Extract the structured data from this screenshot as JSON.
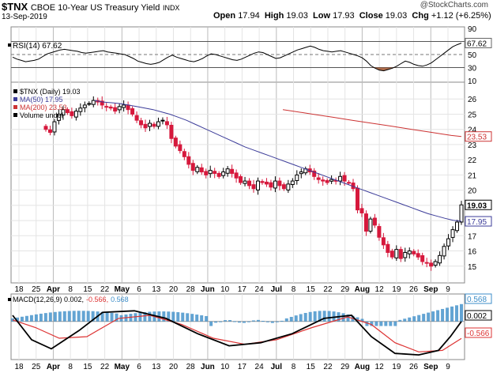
{
  "header": {
    "symbol": "$TNX",
    "name": "CBOE 10-Year US Treasury Yield",
    "exchange": "INDX",
    "date": "13-Sep-2019",
    "watermark": "@StockCharts.com",
    "open_label": "Open",
    "open": "17.94",
    "high_label": "High",
    "high": "19.03",
    "low_label": "Low",
    "low": "17.93",
    "close_label": "Close",
    "close": "19.03",
    "chg_label": "Chg",
    "chg": "+1.12 (+6.25%)"
  },
  "chart_data": [
    {
      "type": "line",
      "panel": "rsi",
      "legend": "RSI(14) 67.62",
      "ylim": [
        10,
        90
      ],
      "y_ticks": [
        10,
        30,
        50,
        70,
        90
      ],
      "reference_lines": [
        30,
        50,
        70
      ],
      "last_value_tag": "67.62",
      "last_value": 67.62,
      "color": "#000000",
      "fill_below_30": "#a0522d",
      "values": [
        46,
        43,
        41,
        39,
        40,
        41,
        43,
        47,
        51,
        53,
        55,
        57,
        58,
        57,
        56,
        55,
        53,
        52,
        53,
        54,
        55,
        56,
        54,
        53,
        52,
        51,
        50,
        47,
        44,
        40,
        38,
        36,
        35,
        36,
        38,
        42,
        46,
        49,
        46,
        44,
        42,
        40,
        39,
        41,
        44,
        48,
        51,
        50,
        48,
        46,
        44,
        42,
        41,
        43,
        46,
        49,
        52,
        54,
        53,
        50,
        47,
        44,
        45,
        48,
        51,
        54,
        57,
        59,
        61,
        63,
        61,
        58,
        56,
        55,
        54,
        55,
        56,
        54,
        52,
        50,
        48,
        45,
        40,
        33,
        29,
        26,
        25,
        27,
        29,
        32,
        36,
        40,
        38,
        35,
        33,
        32,
        34,
        37,
        42,
        47,
        52,
        57,
        62,
        65,
        67.62
      ]
    },
    {
      "type": "candlestick",
      "panel": "price",
      "legend": [
        "$TNX (Daily) 19.03",
        "MA(50) 17.95",
        "MA(200) 23.53",
        "Volume undef"
      ],
      "ylim": [
        14,
        27
      ],
      "y_ticks": [
        15,
        16,
        17,
        18,
        19,
        20,
        21,
        22,
        23,
        24,
        25,
        26
      ],
      "last_value_tags": [
        "19.03",
        "17.95",
        "23.53"
      ],
      "up_color": "#000000",
      "down_color": "#d6183c",
      "ma50_color": "#3c3c99",
      "ma200_color": "#cc3333",
      "closes": [
        24.0,
        23.8,
        24.5,
        25.0,
        25.3,
        25.1,
        24.9,
        25.2,
        25.4,
        25.6,
        25.7,
        25.9,
        25.8,
        25.6,
        25.5,
        25.4,
        25.2,
        25.5,
        25.6,
        25.3,
        25.0,
        24.6,
        24.3,
        24.1,
        24.4,
        24.2,
        24.5,
        24.6,
        24.3,
        23.4,
        22.9,
        22.6,
        22.2,
        21.7,
        21.3,
        21.5,
        21.2,
        21.0,
        21.3,
        21.1,
        20.9,
        21.2,
        21.4,
        21.1,
        20.8,
        20.5,
        20.6,
        20.3,
        20.1,
        20.6,
        20.5,
        20.4,
        20.2,
        20.6,
        20.3,
        20.1,
        20.4,
        20.6,
        21.0,
        21.2,
        21.4,
        21.2,
        20.9,
        20.7,
        20.6,
        20.5,
        20.7,
        20.6,
        20.9,
        20.6,
        20.5,
        20.1,
        18.7,
        18.5,
        17.3,
        18.1,
        17.7,
        16.9,
        16.4,
        15.9,
        15.6,
        16.1,
        15.5,
        15.9,
        16.0,
        15.8,
        15.6,
        15.3,
        15.2,
        15.0,
        15.3,
        15.7,
        16.3,
        16.8,
        17.4,
        17.9,
        19.03
      ],
      "ma50": [
        25.9,
        25.8,
        25.75,
        25.7,
        25.6,
        25.5,
        25.4,
        25.3,
        25.15,
        25.0,
        24.8,
        24.6,
        24.35,
        24.1,
        23.85,
        23.6,
        23.35,
        23.1,
        22.85,
        22.65,
        22.45,
        22.25,
        22.05,
        21.85,
        21.65,
        21.45,
        21.25,
        21.05,
        20.85,
        20.65,
        20.45,
        20.25,
        20.05,
        19.85,
        19.65,
        19.45,
        19.25,
        19.05,
        18.85,
        18.65,
        18.45,
        18.3,
        18.15,
        18.02,
        17.95
      ],
      "ma200": [
        25.3,
        25.2,
        25.1,
        25.0,
        24.9,
        24.8,
        24.7,
        24.6,
        24.5,
        24.4,
        24.3,
        24.2,
        24.1,
        24.0,
        23.9,
        23.8,
        23.7,
        23.6,
        23.53
      ]
    },
    {
      "type": "line",
      "panel": "macd",
      "legend": [
        "MACD(12,26,9) 0.002,",
        "-0.566,",
        "0.568"
      ],
      "last_value_tags": [
        "0.568",
        "0.002",
        "-0.566"
      ],
      "macd_color": "#000000",
      "signal_color": "#dd3333",
      "histogram_color": "#3c8dc8"
    }
  ],
  "x_axis": {
    "labels": [
      {
        "text": "18",
        "bold": false
      },
      {
        "text": "25",
        "bold": false
      },
      {
        "text": "Apr",
        "bold": true
      },
      {
        "text": "8",
        "bold": false
      },
      {
        "text": "15",
        "bold": false
      },
      {
        "text": "22",
        "bold": false
      },
      {
        "text": "May",
        "bold": true
      },
      {
        "text": "6",
        "bold": false
      },
      {
        "text": "13",
        "bold": false
      },
      {
        "text": "20",
        "bold": false
      },
      {
        "text": "28",
        "bold": false
      },
      {
        "text": "Jun",
        "bold": true
      },
      {
        "text": "10",
        "bold": false
      },
      {
        "text": "17",
        "bold": false
      },
      {
        "text": "24",
        "bold": false
      },
      {
        "text": "Jul",
        "bold": true
      },
      {
        "text": "8",
        "bold": false
      },
      {
        "text": "15",
        "bold": false
      },
      {
        "text": "22",
        "bold": false
      },
      {
        "text": "29",
        "bold": false
      },
      {
        "text": "Aug",
        "bold": true
      },
      {
        "text": "12",
        "bold": false
      },
      {
        "text": "19",
        "bold": false
      },
      {
        "text": "26",
        "bold": false
      },
      {
        "text": "Sep",
        "bold": true
      },
      {
        "text": "9",
        "bold": false
      }
    ]
  }
}
